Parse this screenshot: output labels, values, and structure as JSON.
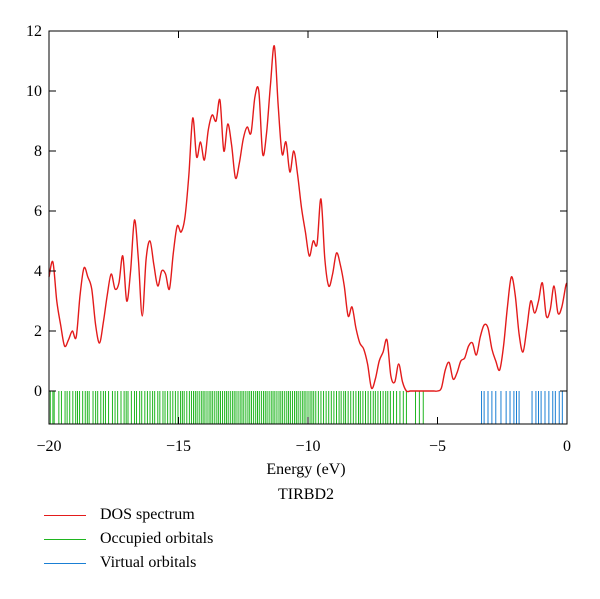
{
  "chart_data": {
    "type": "line",
    "xlabel": "Energy (eV)",
    "subtitle": "TIRBD2",
    "xlim": [
      -20,
      0
    ],
    "ylim": [
      -1.1,
      12
    ],
    "x_ticks": [
      -20,
      -15,
      -10,
      -5,
      0
    ],
    "x_tick_labels": [
      "−20",
      "−15",
      "−10",
      "−5",
      "0"
    ],
    "y_ticks": [
      0,
      2,
      4,
      6,
      8,
      10,
      12
    ],
    "y_tick_labels": [
      "0",
      "2",
      "4",
      "6",
      "8",
      "10",
      "12"
    ],
    "grid": false,
    "legend_position": "below",
    "series": [
      {
        "name": "DOS spectrum",
        "color": "#e31b1b",
        "x": [
          -20.0,
          -19.85,
          -19.7,
          -19.55,
          -19.4,
          -19.25,
          -19.1,
          -18.95,
          -18.8,
          -18.65,
          -18.5,
          -18.35,
          -18.2,
          -18.05,
          -17.9,
          -17.75,
          -17.6,
          -17.45,
          -17.3,
          -17.15,
          -17.0,
          -16.85,
          -16.7,
          -16.55,
          -16.4,
          -16.25,
          -16.1,
          -15.95,
          -15.8,
          -15.65,
          -15.5,
          -15.35,
          -15.2,
          -15.05,
          -14.9,
          -14.75,
          -14.6,
          -14.45,
          -14.3,
          -14.15,
          -14.0,
          -13.85,
          -13.7,
          -13.55,
          -13.4,
          -13.25,
          -13.1,
          -12.95,
          -12.8,
          -12.65,
          -12.5,
          -12.35,
          -12.2,
          -12.05,
          -11.9,
          -11.75,
          -11.6,
          -11.45,
          -11.3,
          -11.15,
          -11.0,
          -10.85,
          -10.7,
          -10.55,
          -10.4,
          -10.25,
          -10.1,
          -9.95,
          -9.8,
          -9.65,
          -9.5,
          -9.35,
          -9.2,
          -9.05,
          -8.9,
          -8.75,
          -8.6,
          -8.45,
          -8.3,
          -8.15,
          -8.0,
          -7.85,
          -7.7,
          -7.55,
          -7.4,
          -7.25,
          -7.1,
          -6.95,
          -6.8,
          -6.65,
          -6.5,
          -6.35,
          -6.2,
          -6.05,
          -5.9,
          -5.75,
          -5.6,
          -5.45,
          -5.3,
          -5.15,
          -5.0,
          -4.85,
          -4.7,
          -4.55,
          -4.4,
          -4.25,
          -4.1,
          -3.95,
          -3.8,
          -3.65,
          -3.5,
          -3.35,
          -3.2,
          -3.05,
          -2.9,
          -2.75,
          -2.6,
          -2.45,
          -2.3,
          -2.15,
          -2.0,
          -1.85,
          -1.7,
          -1.55,
          -1.4,
          -1.25,
          -1.1,
          -0.95,
          -0.8,
          -0.65,
          -0.5,
          -0.35,
          -0.2,
          -0.05,
          0.0
        ],
        "y": [
          3.8,
          4.3,
          3.0,
          2.2,
          1.5,
          1.7,
          2.0,
          1.8,
          3.2,
          4.1,
          3.8,
          3.4,
          2.2,
          1.6,
          2.3,
          3.2,
          3.9,
          3.4,
          3.6,
          4.5,
          3.0,
          4.0,
          5.7,
          4.4,
          2.5,
          4.4,
          5.0,
          4.2,
          3.5,
          4.0,
          3.9,
          3.4,
          4.6,
          5.5,
          5.3,
          5.8,
          7.2,
          9.1,
          7.8,
          8.3,
          7.7,
          8.7,
          9.2,
          9.0,
          9.7,
          8.0,
          8.9,
          8.2,
          7.1,
          7.6,
          8.4,
          8.8,
          8.6,
          9.8,
          10.0,
          7.9,
          8.6,
          10.2,
          11.5,
          9.5,
          7.9,
          8.3,
          7.3,
          8.0,
          7.2,
          6.1,
          5.3,
          4.5,
          5.0,
          4.9,
          6.4,
          4.4,
          3.5,
          3.9,
          4.6,
          4.2,
          3.5,
          2.5,
          2.8,
          2.1,
          1.6,
          1.4,
          0.9,
          0.1,
          0.4,
          1.0,
          1.3,
          1.7,
          0.5,
          0.3,
          0.9,
          0.3,
          0.0,
          0.0,
          0.0,
          0.0,
          0.0,
          0.0,
          0.0,
          0.0,
          0.0,
          0.1,
          0.7,
          0.95,
          0.4,
          0.6,
          1.0,
          1.1,
          1.5,
          1.6,
          1.2,
          1.8,
          2.2,
          2.1,
          1.4,
          1.0,
          0.7,
          1.5,
          2.8,
          3.8,
          3.2,
          1.9,
          1.3,
          2.1,
          3.0,
          2.6,
          3.0,
          3.6,
          2.5,
          2.7,
          3.5,
          2.6,
          2.8,
          3.5,
          3.6
        ]
      },
      {
        "name": "Occupied orbitals",
        "color": "#1fb51f",
        "x": [
          -19.95,
          -19.85,
          -19.8,
          -19.62,
          -19.52,
          -19.38,
          -19.3,
          -19.2,
          -19.08,
          -18.97,
          -18.9,
          -18.82,
          -18.7,
          -18.6,
          -18.52,
          -18.45,
          -18.3,
          -18.2,
          -18.12,
          -18.0,
          -17.9,
          -17.82,
          -17.7,
          -17.55,
          -17.45,
          -17.35,
          -17.22,
          -17.1,
          -17.02,
          -16.95,
          -16.82,
          -16.7,
          -16.62,
          -16.5,
          -16.42,
          -16.3,
          -16.2,
          -16.1,
          -16.0,
          -15.92,
          -15.8,
          -15.72,
          -15.6,
          -15.52,
          -15.42,
          -15.32,
          -15.22,
          -15.12,
          -15.02,
          -14.92,
          -14.85,
          -14.78,
          -14.68,
          -14.58,
          -14.5,
          -14.42,
          -14.35,
          -14.28,
          -14.2,
          -14.12,
          -14.05,
          -13.98,
          -13.9,
          -13.82,
          -13.75,
          -13.68,
          -13.6,
          -13.52,
          -13.45,
          -13.38,
          -13.3,
          -13.22,
          -13.15,
          -13.08,
          -13.0,
          -12.92,
          -12.85,
          -12.78,
          -12.7,
          -12.62,
          -12.55,
          -12.48,
          -12.4,
          -12.32,
          -12.25,
          -12.18,
          -12.1,
          -12.02,
          -11.95,
          -11.88,
          -11.8,
          -11.72,
          -11.65,
          -11.58,
          -11.5,
          -11.42,
          -11.35,
          -11.28,
          -11.2,
          -11.12,
          -11.05,
          -10.98,
          -10.9,
          -10.82,
          -10.75,
          -10.68,
          -10.6,
          -10.52,
          -10.45,
          -10.38,
          -10.3,
          -10.22,
          -10.15,
          -10.08,
          -10.0,
          -9.92,
          -9.85,
          -9.78,
          -9.7,
          -9.6,
          -9.5,
          -9.4,
          -9.3,
          -9.2,
          -9.1,
          -9.0,
          -8.9,
          -8.8,
          -8.72,
          -8.62,
          -8.55,
          -8.45,
          -8.35,
          -8.25,
          -8.15,
          -8.05,
          -7.98,
          -7.88,
          -7.78,
          -7.68,
          -7.58,
          -7.48,
          -7.4,
          -7.3,
          -7.2,
          -7.1,
          -7.0,
          -6.92,
          -6.82,
          -6.7,
          -6.58,
          -6.45,
          -6.32,
          -6.2,
          -5.85,
          -5.7,
          -5.55
        ],
        "height": [
          0,
          -1.1
        ]
      },
      {
        "name": "Virtual orbitals",
        "color": "#1a7fd4",
        "x": [
          -3.3,
          -3.2,
          -3.05,
          -2.9,
          -2.75,
          -2.55,
          -2.35,
          -2.2,
          -2.05,
          -1.95,
          -1.85,
          -1.35,
          -1.2,
          -1.1,
          -1.0,
          -0.85,
          -0.7,
          -0.55,
          -0.45,
          -0.3,
          -0.18
        ],
        "height": [
          0,
          -1.1
        ]
      }
    ]
  }
}
